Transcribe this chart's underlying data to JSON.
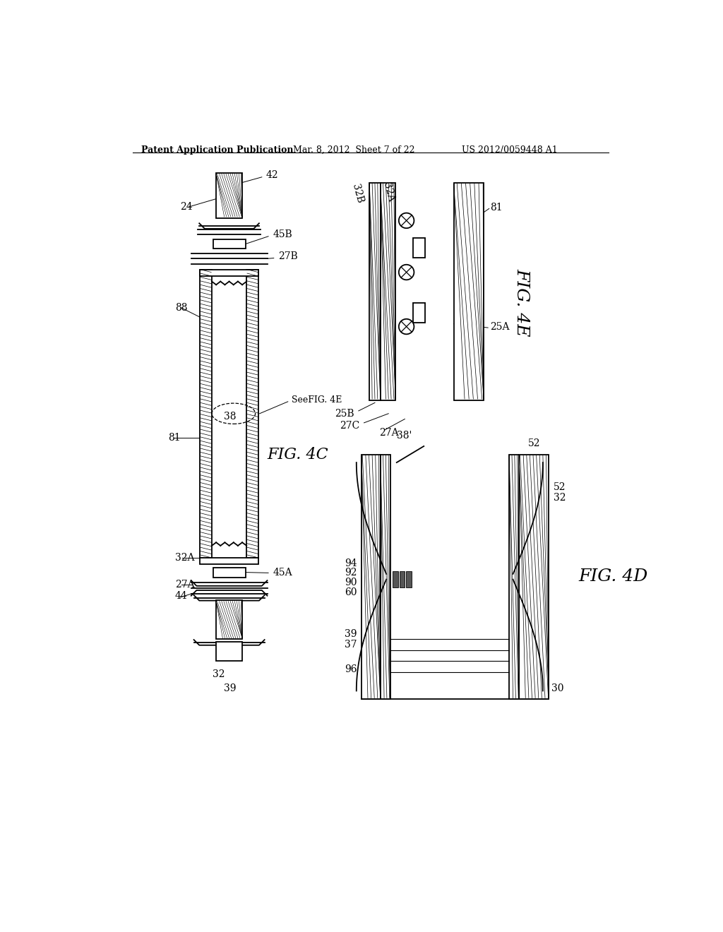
{
  "bg_color": "#ffffff",
  "header_text": "Patent Application Publication",
  "header_date": "Mar. 8, 2012  Sheet 7 of 22",
  "header_patent": "US 2012/0059448 A1",
  "fig4c_label": "FIG. 4C",
  "fig4d_label": "FIG. 4D",
  "fig4e_label": "FIG. 4E",
  "see_label": "SeeFIG. 4E",
  "line_color": "#000000",
  "label_fontsize": 10,
  "header_fontsize": 9,
  "fig_label_fontsize": 16
}
